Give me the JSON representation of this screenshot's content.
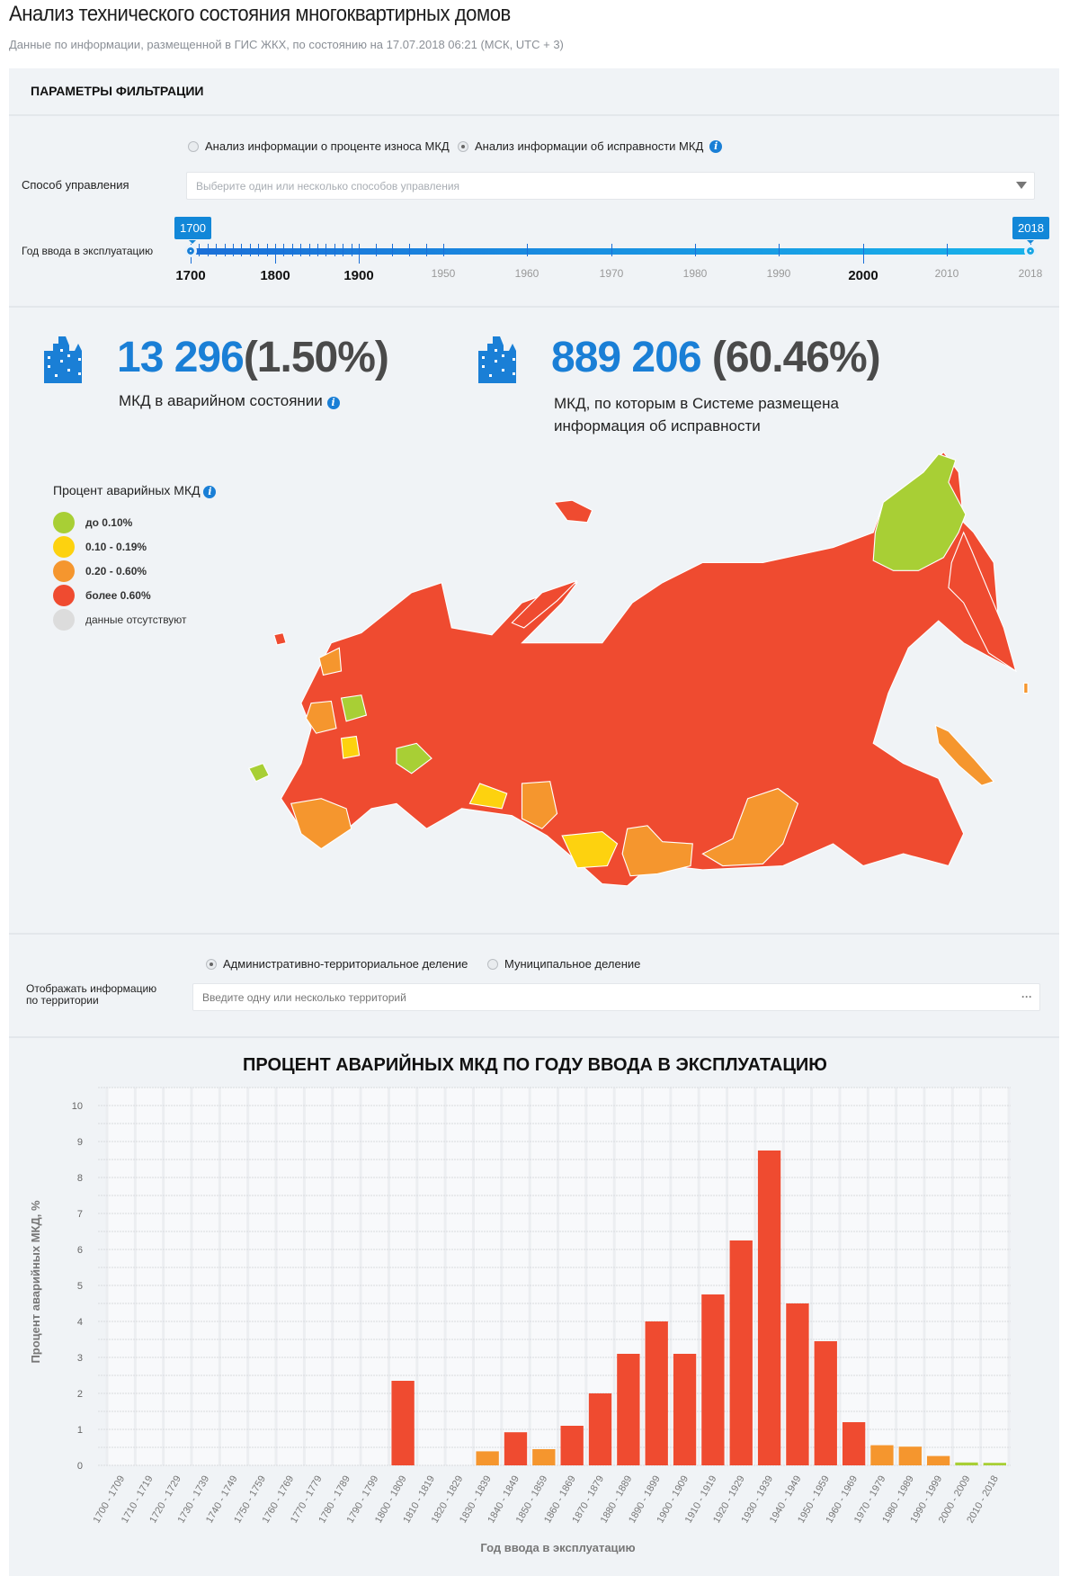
{
  "header": {
    "title": "Анализ технического состояния многоквартирных домов",
    "subtitle": "Данные по информации, размещенной в ГИС ЖКХ, по состоянию на 17.07.2018 06:21 (МСК, UTC + 3)"
  },
  "filters": {
    "title": "ПАРАМЕТРЫ ФИЛЬТРАЦИИ",
    "analysis_options": [
      {
        "label": "Анализ информации о проценте износа МКД",
        "selected": false
      },
      {
        "label": "Анализ информации об исправности МКД",
        "selected": true
      }
    ],
    "management_label": "Способ управления",
    "management_placeholder": "Выберите один или несколько способов управления",
    "year_label": "Год ввода в эксплуатацию",
    "year_from": "1700",
    "year_to": "2018",
    "year_ticks": [
      "1700",
      "1800",
      "1900",
      "1950",
      "1960",
      "1970",
      "1980",
      "1990",
      "2000",
      "2010",
      "2018"
    ]
  },
  "stats": [
    {
      "value": "13 296",
      "percent": "(1.50%)",
      "label": "МКД в аварийном состоянии"
    },
    {
      "value": "889 206",
      "percent": "(60.46%)",
      "label_line1": "МКД, по которым в Системе размещена",
      "label_line2": "информация об исправности"
    }
  ],
  "legend": {
    "title": "Процент аварийных МКД",
    "items": [
      {
        "label": "до 0.10%",
        "color": "#a8cf35"
      },
      {
        "label": "0.10 - 0.19%",
        "color": "#fdd20f"
      },
      {
        "label": "0.20 - 0.60%",
        "color": "#f5962e"
      },
      {
        "label": "более 0.60%",
        "color": "#ef4b30"
      },
      {
        "label": "данные отсутствуют",
        "color": "#dcdcdc"
      }
    ]
  },
  "territory": {
    "options": [
      {
        "label": "Административно-территориальное деление",
        "selected": true
      },
      {
        "label": "Муниципальное деление",
        "selected": false
      }
    ],
    "label_line1": "Отображать информацию",
    "label_line2": "по территории",
    "placeholder": "Введите одну или несколько территорий"
  },
  "chart_data": {
    "type": "bar",
    "title": "ПРОЦЕНТ АВАРИЙНЫХ МКД ПО ГОДУ ВВОДА В ЭКСПЛУАТАЦИЮ",
    "xlabel": "Год ввода в эксплуатацию",
    "ylabel": "Процент аварийных МКД, %",
    "ylim": [
      0,
      10
    ],
    "yticks": [
      0,
      1,
      2,
      3,
      4,
      5,
      6,
      7,
      8,
      9,
      10
    ],
    "grid": true,
    "categories": [
      "1700 - 1709",
      "1710 - 1719",
      "1720 - 1729",
      "1730 - 1739",
      "1740 - 1749",
      "1750 - 1759",
      "1760 - 1769",
      "1770 - 1779",
      "1780 - 1789",
      "1790 - 1799",
      "1800 - 1809",
      "1810 - 1819",
      "1820 - 1829",
      "1830 - 1839",
      "1840 - 1849",
      "1850 - 1859",
      "1860 - 1869",
      "1870 - 1879",
      "1880 - 1889",
      "1890 - 1899",
      "1900 - 1909",
      "1910 - 1919",
      "1920 - 1929",
      "1930 - 1939",
      "1940 - 1949",
      "1950 - 1959",
      "1960 - 1969",
      "1970 - 1979",
      "1980 - 1989",
      "1990 - 1999",
      "2000 - 2009",
      "2010 - 2018"
    ],
    "values": [
      0,
      0,
      0,
      0,
      0,
      0,
      0,
      0,
      0,
      0,
      2.35,
      0,
      0,
      0.39,
      0.92,
      0.45,
      1.1,
      2.0,
      3.1,
      4.0,
      3.1,
      4.75,
      6.25,
      8.75,
      4.5,
      3.45,
      1.2,
      0.56,
      0.52,
      0.26,
      0.08,
      0.07
    ],
    "colors": {
      "high": "#ef4b30",
      "mid": "#f5962e",
      "low": "#a8cf35"
    }
  }
}
